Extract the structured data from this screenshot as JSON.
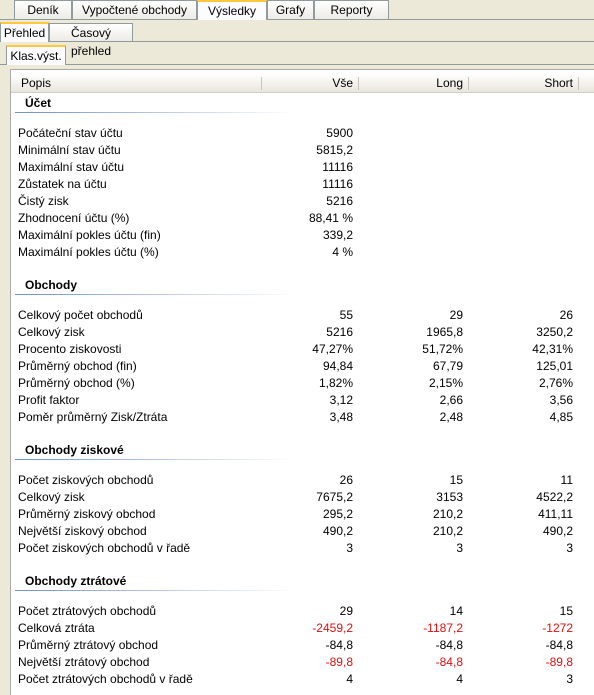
{
  "tabs": [
    "Deník",
    "Vypočtené obchody",
    "Výsledky",
    "Grafy",
    "Reporty"
  ],
  "subtabs": [
    "Přehled",
    "Časový přehled"
  ],
  "panel_tab": "Klas.výst.",
  "table": {
    "columns": [
      "Popis",
      "Vše",
      "Long",
      "Short"
    ],
    "sections": [
      {
        "title": "Účet",
        "rows": [
          {
            "label": "Počáteční stav účtu",
            "values": [
              "5900"
            ]
          },
          {
            "label": "Minimální stav účtu",
            "values": [
              "5815,2"
            ]
          },
          {
            "label": "Maximální stav účtu",
            "values": [
              "11116"
            ]
          },
          {
            "label": "Zůstatek na účtu",
            "values": [
              "11116"
            ]
          },
          {
            "label": "Čistý zisk",
            "values": [
              "5216"
            ]
          },
          {
            "label": "Zhodnocení účtu (%)",
            "values": [
              "88,41 %"
            ]
          },
          {
            "label": "Maximální pokles účtu (fin)",
            "values": [
              "339,2"
            ]
          },
          {
            "label": "Maximální pokles účtu (%)",
            "values": [
              "4 %"
            ]
          }
        ]
      },
      {
        "title": "Obchody",
        "rows": [
          {
            "label": "Celkový počet obchodů",
            "values": [
              "55",
              "29",
              "26"
            ]
          },
          {
            "label": "Celkový zisk",
            "values": [
              "5216",
              "1965,8",
              "3250,2"
            ]
          },
          {
            "label": "Procento ziskovosti",
            "values": [
              "47,27%",
              "51,72%",
              "42,31%"
            ]
          },
          {
            "label": "Průměrný obchod (fin)",
            "values": [
              "94,84",
              "67,79",
              "125,01"
            ]
          },
          {
            "label": "Průměrný obchod (%)",
            "values": [
              "1,82%",
              "2,15%",
              "2,76%"
            ]
          },
          {
            "label": "Profit faktor",
            "values": [
              "3,12",
              "2,66",
              "3,56"
            ]
          },
          {
            "label": "Poměr průměrný Zisk/Ztráta",
            "values": [
              "3,48",
              "2,48",
              "4,85"
            ]
          }
        ]
      },
      {
        "title": "Obchody ziskové",
        "rows": [
          {
            "label": "Počet ziskových obchodů",
            "values": [
              "26",
              "15",
              "11"
            ]
          },
          {
            "label": "Celkový zisk",
            "values": [
              "7675,2",
              "3153",
              "4522,2"
            ]
          },
          {
            "label": "Průměrný ziskový obchod",
            "values": [
              "295,2",
              "210,2",
              "411,11"
            ]
          },
          {
            "label": "Největší ziskový obchod",
            "values": [
              "490,2",
              "210,2",
              "490,2"
            ]
          },
          {
            "label": "Počet ziskových obchodů v řadě",
            "values": [
              "3",
              "3",
              "3"
            ]
          }
        ]
      },
      {
        "title": "Obchody ztrátové",
        "rows": [
          {
            "label": "Počet ztrátových obchodů",
            "values": [
              "29",
              "14",
              "15"
            ]
          },
          {
            "label": "Celková ztráta",
            "values": [
              "-2459,2",
              "-1187,2",
              "-1272"
            ],
            "color": "#e01010"
          },
          {
            "label": "Průměrný ztrátový obchod",
            "values": [
              "-84,8",
              "-84,8",
              "-84,8"
            ]
          },
          {
            "label": "Největší ztrátový obchod",
            "values": [
              "-89,8",
              "-84,8",
              "-89,8"
            ],
            "color": "#e01010"
          },
          {
            "label": "Počet ztrátových obchodů v řadě",
            "values": [
              "4",
              "4",
              "3"
            ]
          }
        ]
      }
    ]
  }
}
